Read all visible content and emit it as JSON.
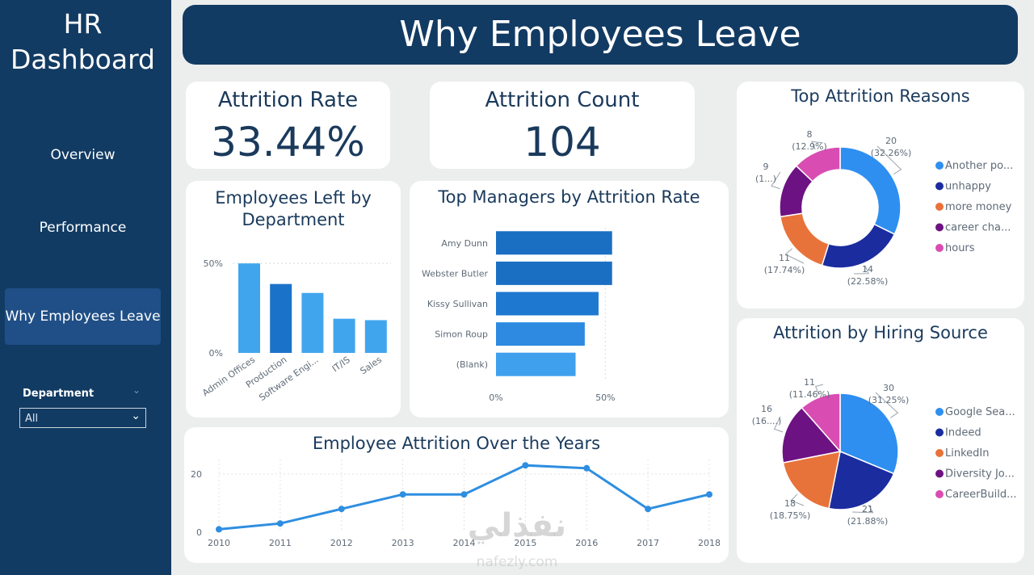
{
  "app": {
    "title_line1": "HR",
    "title_line2": "Dashboard"
  },
  "nav": {
    "items": [
      "Overview",
      "Performance",
      "Why Employees Leave"
    ],
    "active": "Why Employees Leave"
  },
  "slicer": {
    "label": "Department",
    "value": "All"
  },
  "banner": {
    "title": "Why Employees Leave"
  },
  "kpis": {
    "rate": {
      "label": "Attrition Rate",
      "value": "33.44%"
    },
    "count": {
      "label": "Attrition Count",
      "value": "104"
    }
  },
  "colors": {
    "navy": "#123b63",
    "blue_light": "#41a5ee",
    "blue_dark": "#1b73c9",
    "line": "#2e8ee0"
  },
  "watermark": {
    "main": "نفذلي",
    "sub": "nafezly.com"
  },
  "chart_data": [
    {
      "id": "dept",
      "type": "bar",
      "title": "Employees Left by Department",
      "categories": [
        "Admin Offices",
        "Production",
        "Software Engi...",
        "IT/IS",
        "Sales"
      ],
      "values": [
        50,
        38.5,
        33.5,
        19.1,
        18.3
      ],
      "ytick_labels": [
        "0%",
        "50%"
      ],
      "ylim": [
        0,
        60
      ]
    },
    {
      "id": "managers",
      "type": "bar",
      "orientation": "horizontal",
      "title": "Top Managers by Attrition Rate",
      "categories": [
        "Amy Dunn",
        "Webster Butler",
        "Kissy Sullivan",
        "Simon Roup",
        "(Blank)"
      ],
      "values": [
        53.1,
        53.1,
        46.9,
        40.6,
        36.4
      ],
      "xtick_labels": [
        "0%",
        "50%"
      ],
      "xlim": [
        0,
        100
      ]
    },
    {
      "id": "reasons",
      "type": "pie",
      "subtype": "donut",
      "title": "Top Attrition Reasons",
      "labels": [
        "Another po...",
        "unhappy",
        "more money",
        "career cha...",
        "hours"
      ],
      "values": [
        20,
        14,
        11,
        9,
        8
      ],
      "data_labels": [
        [
          "20",
          "(32.26%)"
        ],
        [
          "14",
          "(22.58%)"
        ],
        [
          "11",
          "(17.74%)"
        ],
        [
          "9",
          "(1...)"
        ],
        [
          "8",
          "(12.9%)"
        ]
      ],
      "colors": [
        "#2e8ff0",
        "#1a2c9e",
        "#e8733a",
        "#6d1282",
        "#d94db2"
      ],
      "legend": "right"
    },
    {
      "id": "sources",
      "type": "pie",
      "title": "Attrition by Hiring Source",
      "labels": [
        "Google Sea...",
        "Indeed",
        "LinkedIn",
        "Diversity Jo...",
        "CareerBuild..."
      ],
      "values": [
        30,
        21,
        18,
        16,
        11
      ],
      "data_labels": [
        [
          "30",
          "(31.25%)"
        ],
        [
          "21",
          "(21.88%)"
        ],
        [
          "18",
          "(18.75%)"
        ],
        [
          "16",
          "(16....)"
        ],
        [
          "11",
          "(11.46%)"
        ]
      ],
      "colors": [
        "#2e8ff0",
        "#1a2c9e",
        "#e8733a",
        "#6d1282",
        "#d94db2"
      ],
      "legend": "right"
    },
    {
      "id": "years",
      "type": "line",
      "title": "Employee Attrition Over the Years",
      "x": [
        "2010",
        "2011",
        "2012",
        "2013",
        "2014",
        "2015",
        "2016",
        "2017",
        "2018"
      ],
      "y": [
        1,
        3,
        8,
        13,
        13,
        23,
        22,
        8,
        13
      ],
      "ytick_labels": [
        "0",
        "20"
      ],
      "ylim": [
        0,
        25
      ],
      "grid": true
    }
  ]
}
